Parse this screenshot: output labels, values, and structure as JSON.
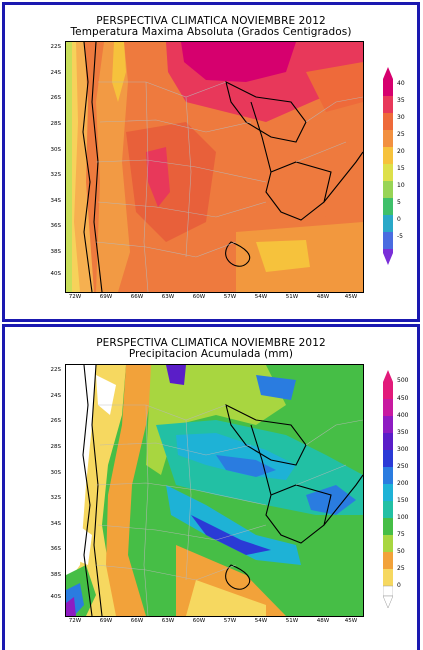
{
  "panels": [
    {
      "title_line1": "PERSPECTIVA CLIMATICA NOVIEMBRE 2012",
      "title_line2": "Temperatura Maxima Absoluta (Grados Centigrados)",
      "lat_labels": [
        "22S",
        "24S",
        "26S",
        "28S",
        "30S",
        "32S",
        "34S",
        "36S",
        "38S",
        "40S"
      ],
      "lon_labels": [
        "72W",
        "69W",
        "66W",
        "63W",
        "60W",
        "57W",
        "54W",
        "51W",
        "48W",
        "45W"
      ],
      "legend": {
        "values": [
          "40",
          "35",
          "30",
          "25",
          "20",
          "15",
          "10",
          "5",
          "0",
          "-5"
        ],
        "colors": [
          "#d6006e",
          "#e8385a",
          "#ee6a3a",
          "#f29040",
          "#f6c23c",
          "#dde04a",
          "#98d456",
          "#3fc06a",
          "#2aa8c8",
          "#4a6ce0",
          "#7a2ed8"
        ]
      }
    },
    {
      "title_line1": "PERSPECTIVA CLIMATICA NOVIEMBRE 2012",
      "title_line2": "Precipitacion Acumulada (mm)",
      "lat_labels": [
        "22S",
        "24S",
        "26S",
        "28S",
        "30S",
        "32S",
        "34S",
        "36S",
        "38S",
        "40S"
      ],
      "lon_labels": [
        "72W",
        "69W",
        "66W",
        "63W",
        "60W",
        "57W",
        "54W",
        "51W",
        "48W",
        "45W"
      ],
      "legend": {
        "values": [
          "500",
          "450",
          "400",
          "350",
          "300",
          "250",
          "200",
          "150",
          "100",
          "75",
          "50",
          "25",
          "0"
        ],
        "colors": [
          "#e21a7a",
          "#c81aa0",
          "#8e1cc2",
          "#5a1ec8",
          "#2a3ad6",
          "#2a7ce0",
          "#1eb2d6",
          "#22c0a4",
          "#46be46",
          "#a8d640",
          "#f2a23a",
          "#f6d860",
          "#ffffff"
        ]
      }
    }
  ]
}
